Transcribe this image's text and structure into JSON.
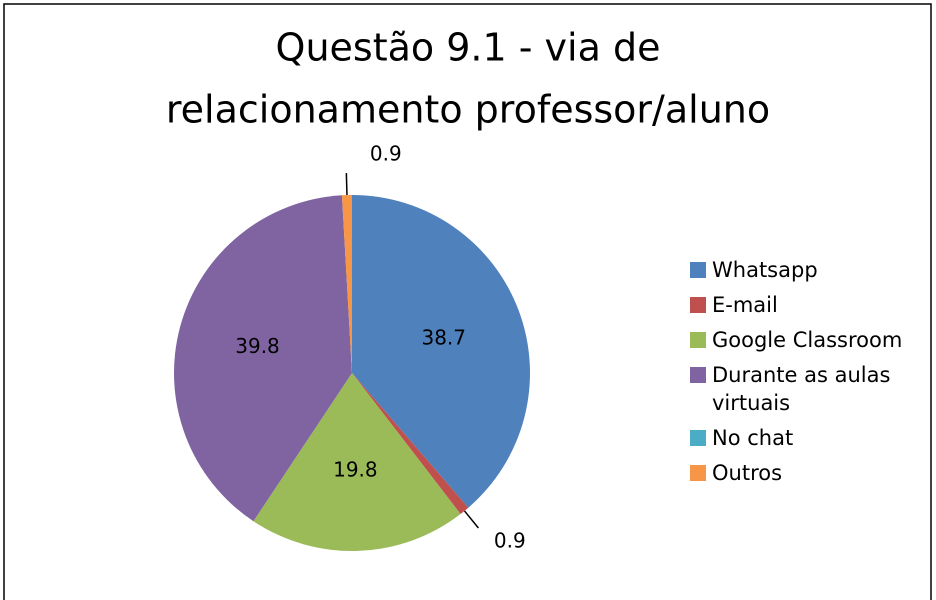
{
  "chart_data": {
    "type": "pie",
    "title": [
      "Questão 9.1 - via de",
      "relacionamento professor/aluno"
    ],
    "categories": [
      "Whatsapp",
      "E-mail",
      "Google Classroom",
      "Durante as aulas virtuais",
      "No chat",
      "Outros"
    ],
    "values": [
      38.7,
      0.9,
      19.8,
      39.8,
      0,
      0.9
    ],
    "colors": [
      "#4f81bd",
      "#c0504d",
      "#9bbb59",
      "#8064a2",
      "#4bacc6",
      "#f79646"
    ],
    "legend": "right"
  }
}
